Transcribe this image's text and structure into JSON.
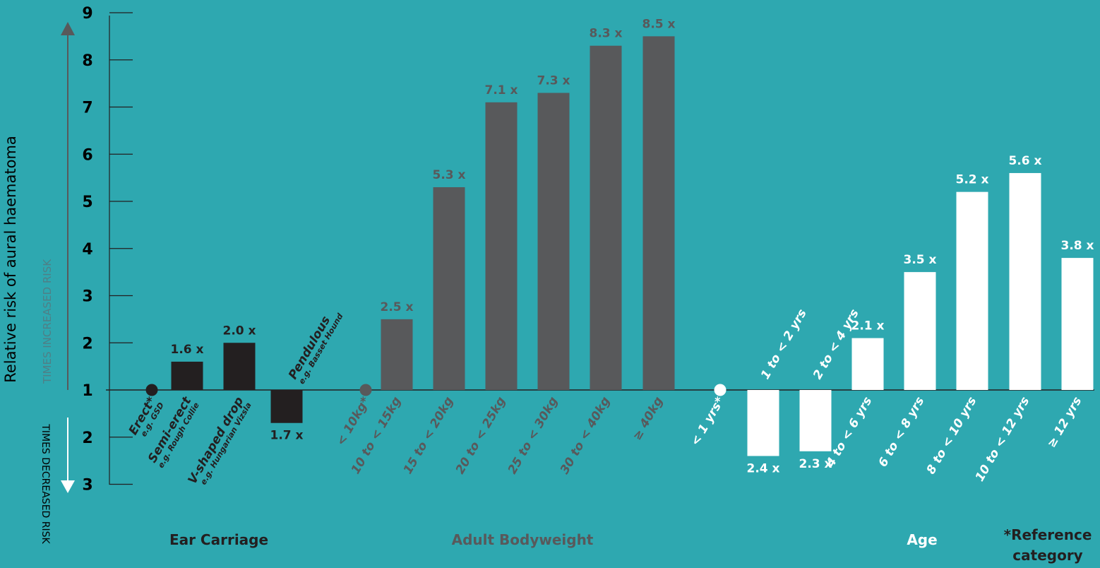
{
  "colors": {
    "background": "#2ea8b0",
    "ear": "#231f20",
    "weight": "#58595b",
    "age": "#ffffff"
  },
  "axis": {
    "title": "Relative risk of aural haematoma",
    "increased_label": "TIMES INCREASED RISK",
    "decreased_label": "TIMES DECREASED RISK",
    "up_ticks": [
      "1",
      "2",
      "3",
      "4",
      "5",
      "6",
      "7",
      "8",
      "9"
    ],
    "down_ticks": [
      "2",
      "3"
    ]
  },
  "groups": {
    "ear": "Ear Carriage",
    "weight": "Adult Bodyweight",
    "age": "Age"
  },
  "footnote": [
    "*Reference",
    "category"
  ],
  "chart_data": {
    "type": "bar",
    "reference_value": 1,
    "ylim_increased": [
      1,
      9
    ],
    "ylim_decreased": [
      1,
      3
    ],
    "series": [
      {
        "group": "ear",
        "bars": [
          {
            "label": "Erect*",
            "sub": "e.g. GSD",
            "value": 1,
            "direction": "reference",
            "value_label": ""
          },
          {
            "label": "Semi-erect",
            "sub": "e.g. Rough Collie",
            "value": 1.6,
            "direction": "increased",
            "value_label": "1.6 x"
          },
          {
            "label": "V-shaped drop",
            "sub": "e.g. Hungarian Vizsla",
            "value": 2.0,
            "direction": "increased",
            "value_label": "2.0 x"
          },
          {
            "label": "Pendulous",
            "sub": "e.g. Basset Hound",
            "value": 1.7,
            "direction": "decreased",
            "value_label": "1.7 x"
          }
        ]
      },
      {
        "group": "weight",
        "bars": [
          {
            "label": "< 10kg*",
            "value": 1,
            "direction": "reference",
            "value_label": ""
          },
          {
            "label": "10 to < 15kg",
            "value": 2.5,
            "direction": "increased",
            "value_label": "2.5 x"
          },
          {
            "label": "15 to < 20kg",
            "value": 5.3,
            "direction": "increased",
            "value_label": "5.3 x"
          },
          {
            "label": "20 to < 25kg",
            "value": 7.1,
            "direction": "increased",
            "value_label": "7.1 x"
          },
          {
            "label": "25 to < 30kg",
            "value": 7.3,
            "direction": "increased",
            "value_label": "7.3 x"
          },
          {
            "label": "30 to < 40kg",
            "value": 8.3,
            "direction": "increased",
            "value_label": "8.3 x"
          },
          {
            "label": "≥ 40kg",
            "value": 8.5,
            "direction": "increased",
            "value_label": "8.5 x"
          }
        ]
      },
      {
        "group": "age",
        "bars": [
          {
            "label": "< 1 yrs*",
            "value": 1,
            "direction": "reference",
            "value_label": ""
          },
          {
            "label": "1 to < 2 yrs",
            "value": 2.4,
            "direction": "decreased",
            "value_label": "2.4 x"
          },
          {
            "label": "2 to < 4 yrs",
            "value": 2.3,
            "direction": "decreased",
            "value_label": "2.3 x"
          },
          {
            "label": "4 to < 6 yrs",
            "value": 2.1,
            "direction": "increased",
            "value_label": "2.1 x"
          },
          {
            "label": "6 to < 8 yrs",
            "value": 3.5,
            "direction": "increased",
            "value_label": "3.5 x"
          },
          {
            "label": "8 to < 10 yrs",
            "value": 5.2,
            "direction": "increased",
            "value_label": "5.2 x"
          },
          {
            "label": "10 to < 12 yrs",
            "value": 5.6,
            "direction": "increased",
            "value_label": "5.6 x"
          },
          {
            "label": "≥ 12 yrs",
            "value": 3.8,
            "direction": "increased",
            "value_label": "3.8 x"
          }
        ]
      }
    ]
  }
}
